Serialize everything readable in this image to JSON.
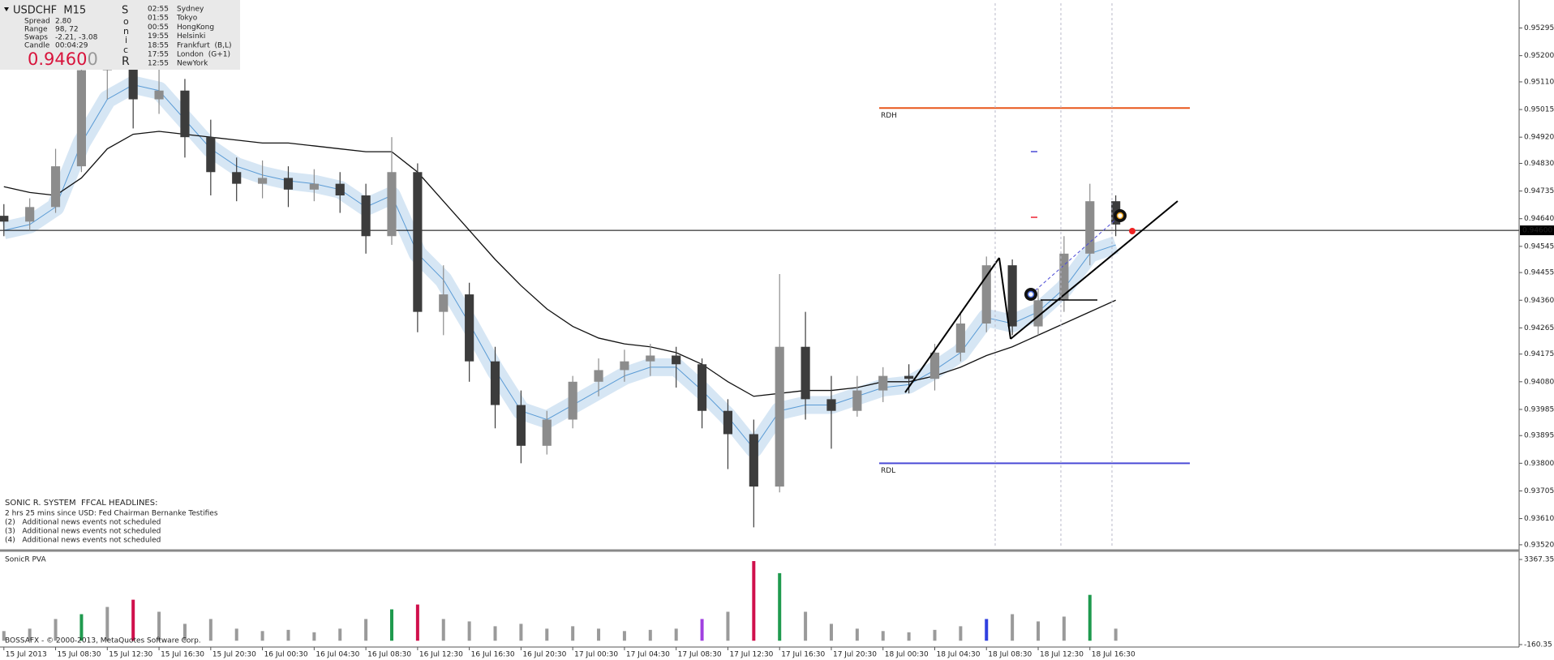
{
  "header": {
    "symbol": "USDCHF  M15",
    "stats": [
      {
        "label": "Spread",
        "value": "2.80"
      },
      {
        "label": "Range",
        "value": "98, 72"
      },
      {
        "label": "Swaps",
        "value": "-2.21, -3.08"
      },
      {
        "label": "Candle",
        "value": "00:04:29"
      }
    ],
    "price_main": "0.9460",
    "price_last": "0",
    "sonic": [
      "S",
      "o",
      "n",
      "i",
      "c",
      "R"
    ]
  },
  "clocks": [
    {
      "time": "02:55",
      "city": "Sydney"
    },
    {
      "time": "01:55",
      "city": "Tokyo"
    },
    {
      "time": "00:55",
      "city": "HongKong"
    },
    {
      "time": "19:55",
      "city": "Helsinki"
    },
    {
      "time": "18:55",
      "city": "Frankfurt  (B,L)"
    },
    {
      "time": "17:55",
      "city": "London  (G+1)"
    },
    {
      "time": "12:55",
      "city": "NewYork"
    }
  ],
  "headlines": {
    "title": "SONIC R. SYSTEM  FFCAL HEADLINES:",
    "items": [
      "2 hrs 25 mins since USD: Fed Chairman Bernanke Testifies",
      "(2)   Additional news events not scheduled",
      "(3)   Additional news events not scheduled",
      "(4)   Additional news events not scheduled"
    ]
  },
  "footer": "BOSSAFX - © 2000-2013, MetaQuotes Software Corp.",
  "chart_data": [
    {
      "type": "candlestick",
      "candles": [
        [
          0.9465,
          0.9469,
          0.9458,
          0.9463
        ],
        [
          0.9463,
          0.9471,
          0.946,
          0.9468
        ],
        [
          0.9468,
          0.9488,
          0.9466,
          0.9482
        ],
        [
          0.9482,
          0.9528,
          0.948,
          0.9515
        ],
        [
          0.9515,
          0.953,
          0.9505,
          0.952
        ],
        [
          0.952,
          0.9526,
          0.9495,
          0.9505
        ],
        [
          0.9505,
          0.953,
          0.95,
          0.9508
        ],
        [
          0.9508,
          0.9512,
          0.9485,
          0.9492
        ],
        [
          0.9492,
          0.9498,
          0.9472,
          0.948
        ],
        [
          0.948,
          0.9485,
          0.947,
          0.9476
        ],
        [
          0.9476,
          0.9484,
          0.9471,
          0.9478
        ],
        [
          0.9478,
          0.9482,
          0.9468,
          0.9474
        ],
        [
          0.9474,
          0.9481,
          0.947,
          0.9476
        ],
        [
          0.9476,
          0.948,
          0.9466,
          0.9472
        ],
        [
          0.9472,
          0.9476,
          0.9452,
          0.9458
        ],
        [
          0.9458,
          0.9492,
          0.9455,
          0.948
        ],
        [
          0.948,
          0.9483,
          0.9425,
          0.9432
        ],
        [
          0.9432,
          0.9448,
          0.9424,
          0.9438
        ],
        [
          0.9438,
          0.9442,
          0.9408,
          0.9415
        ],
        [
          0.9415,
          0.942,
          0.9392,
          0.94
        ],
        [
          0.94,
          0.9405,
          0.938,
          0.9386
        ],
        [
          0.9386,
          0.9398,
          0.9383,
          0.9395
        ],
        [
          0.9395,
          0.941,
          0.9392,
          0.9408
        ],
        [
          0.9408,
          0.9416,
          0.9403,
          0.9412
        ],
        [
          0.9412,
          0.9419,
          0.9408,
          0.9415
        ],
        [
          0.9415,
          0.9421,
          0.941,
          0.9417
        ],
        [
          0.9417,
          0.942,
          0.9406,
          0.9414
        ],
        [
          0.9414,
          0.9416,
          0.9392,
          0.9398
        ],
        [
          0.9398,
          0.9402,
          0.9378,
          0.939
        ],
        [
          0.939,
          0.9395,
          0.9358,
          0.9372
        ],
        [
          0.9372,
          0.9445,
          0.937,
          0.942
        ],
        [
          0.942,
          0.9432,
          0.9395,
          0.9402
        ],
        [
          0.9402,
          0.941,
          0.9385,
          0.9398
        ],
        [
          0.9398,
          0.941,
          0.9396,
          0.9405
        ],
        [
          0.9405,
          0.9413,
          0.9401,
          0.941
        ],
        [
          0.941,
          0.9414,
          0.9404,
          0.9409
        ],
        [
          0.9409,
          0.9421,
          0.9405,
          0.9418
        ],
        [
          0.9418,
          0.9432,
          0.9415,
          0.9428
        ],
        [
          0.9428,
          0.9451,
          0.9425,
          0.9448
        ],
        [
          0.9448,
          0.945,
          0.9424,
          0.9427
        ],
        [
          0.9427,
          0.944,
          0.9424,
          0.9436
        ],
        [
          0.9436,
          0.9458,
          0.9432,
          0.9452
        ],
        [
          0.9452,
          0.9476,
          0.9448,
          0.947
        ],
        [
          0.947,
          0.9472,
          0.9458,
          0.9462
        ]
      ],
      "up_color": "#8c8c8c",
      "down_color": "#3c3c3c",
      "series": [
        {
          "color": "#5a9bd5",
          "values": [
            0.946,
            0.9462,
            0.9468,
            0.949,
            0.9505,
            0.951,
            0.9508,
            0.9498,
            0.9488,
            0.9482,
            0.9479,
            0.9477,
            0.9476,
            0.9474,
            0.9468,
            0.9472,
            0.9452,
            0.9443,
            0.9428,
            0.9412,
            0.9398,
            0.9395,
            0.94,
            0.9405,
            0.941,
            0.9413,
            0.9413,
            0.9405,
            0.9396,
            0.9385,
            0.9398,
            0.94,
            0.94,
            0.9403,
            0.9406,
            0.9407,
            0.9412,
            0.9418,
            0.943,
            0.9428,
            0.9432,
            0.944,
            0.9452,
            0.9455
          ]
        },
        {
          "color": "#111111",
          "values": [
            0.9475,
            0.9473,
            0.9472,
            0.9478,
            0.9488,
            0.9493,
            0.9494,
            0.9493,
            0.9492,
            0.9491,
            0.949,
            0.949,
            0.9489,
            0.9488,
            0.9487,
            0.9487,
            0.948,
            0.947,
            0.946,
            0.945,
            0.9441,
            0.9433,
            0.9427,
            0.9423,
            0.9421,
            0.942,
            0.9418,
            0.9414,
            0.9408,
            0.9403,
            0.9404,
            0.9405,
            0.9405,
            0.9406,
            0.9408,
            0.9408,
            0.941,
            0.9413,
            0.9417,
            0.942,
            0.9424,
            0.9428,
            0.9432,
            0.9436
          ]
        }
      ],
      "levels": [
        {
          "label": "RDH",
          "value": 0.9502,
          "color": "#e8561a"
        },
        {
          "label": "RDL",
          "value": 0.938,
          "color": "#4a4ad6"
        }
      ],
      "current_price": {
        "value": 0.946,
        "label": "0.94600"
      },
      "xlim": [
        -0.15,
        58.6
      ],
      "ylim": [
        0.93503,
        0.9538
      ],
      "yticks": [
        {
          "value": 0.95295,
          "label": "0.95295"
        },
        {
          "value": 0.952,
          "label": "0.95200"
        },
        {
          "value": 0.9511,
          "label": "0.95110"
        },
        {
          "value": 0.95015,
          "label": "0.95015"
        },
        {
          "value": 0.9492,
          "label": "0.94920"
        },
        {
          "value": 0.9483,
          "label": "0.94830"
        },
        {
          "value": 0.94735,
          "label": "0.94735"
        },
        {
          "value": 0.9464,
          "label": "0.94640"
        },
        {
          "value": 0.94545,
          "label": "0.94545"
        },
        {
          "value": 0.94455,
          "label": "0.94455"
        },
        {
          "value": 0.9436,
          "label": "0.94360"
        },
        {
          "value": 0.94265,
          "label": "0.94265"
        },
        {
          "value": 0.94175,
          "label": "0.94175"
        },
        {
          "value": 0.9408,
          "label": "0.94080"
        },
        {
          "value": 0.93985,
          "label": "0.93985"
        },
        {
          "value": 0.93895,
          "label": "0.93895"
        },
        {
          "value": 0.938,
          "label": "0.93800"
        },
        {
          "value": 0.93705,
          "label": "0.93705"
        },
        {
          "value": 0.9361,
          "label": "0.93610"
        },
        {
          "value": 0.9352,
          "label": "0.93520"
        }
      ],
      "xticks": [
        {
          "value": 0,
          "label": "15 Jul 2013"
        },
        {
          "value": 2,
          "label": "15 Jul 08:30"
        },
        {
          "value": 4,
          "label": "15 Jul 12:30"
        },
        {
          "value": 6,
          "label": "15 Jul 16:30"
        },
        {
          "value": 8,
          "label": "15 Jul 20:30"
        },
        {
          "value": 10,
          "label": "16 Jul 00:30"
        },
        {
          "value": 12,
          "label": "16 Jul 04:30"
        },
        {
          "value": 14,
          "label": "16 Jul 08:30"
        },
        {
          "value": 16,
          "label": "16 Jul 12:30"
        },
        {
          "value": 18,
          "label": "16 Jul 16:30"
        },
        {
          "value": 20,
          "label": "16 Jul 20:30"
        },
        {
          "value": 22,
          "label": "17 Jul 00:30"
        },
        {
          "value": 24,
          "label": "17 Jul 04:30"
        },
        {
          "value": 26,
          "label": "17 Jul 08:30"
        },
        {
          "value": 28,
          "label": "17 Jul 12:30"
        },
        {
          "value": 30,
          "label": "17 Jul 16:30"
        },
        {
          "value": 32,
          "label": "17 Jul 20:30"
        },
        {
          "value": 34,
          "label": "18 Jul 00:30"
        },
        {
          "value": 36,
          "label": "18 Jul 04:30"
        },
        {
          "value": 38,
          "label": "18 Jul 08:30"
        },
        {
          "value": 40,
          "label": "18 Jul 12:30"
        },
        {
          "value": 42,
          "label": "18 Jul 16:30"
        }
      ]
    },
    {
      "type": "bar",
      "title": "SonicR PVA",
      "values": [
        400,
        500,
        900,
        1100,
        1400,
        1700,
        1200,
        700,
        900,
        500,
        400,
        450,
        350,
        500,
        900,
        1300,
        1500,
        900,
        800,
        600,
        700,
        500,
        600,
        500,
        400,
        450,
        500,
        900,
        1200,
        3300,
        2800,
        1200,
        700,
        500,
        400,
        350,
        450,
        600,
        900,
        1100,
        800,
        1000,
        1900,
        500
      ],
      "colors": [
        "#9a9a9a",
        "#9a9a9a",
        "#9a9a9a",
        "#1f9a4e",
        "#9a9a9a",
        "#d0104c",
        "#9a9a9a",
        "#9a9a9a",
        "#9a9a9a",
        "#9a9a9a",
        "#9a9a9a",
        "#9a9a9a",
        "#9a9a9a",
        "#9a9a9a",
        "#9a9a9a",
        "#1f9a4e",
        "#d0104c",
        "#9a9a9a",
        "#9a9a9a",
        "#9a9a9a",
        "#9a9a9a",
        "#9a9a9a",
        "#9a9a9a",
        "#9a9a9a",
        "#9a9a9a",
        "#9a9a9a",
        "#9a9a9a",
        "#a040e0",
        "#9a9a9a",
        "#d0104c",
        "#1f9a4e",
        "#9a9a9a",
        "#9a9a9a",
        "#9a9a9a",
        "#9a9a9a",
        "#9a9a9a",
        "#9a9a9a",
        "#9a9a9a",
        "#3040e0",
        "#9a9a9a",
        "#9a9a9a",
        "#9a9a9a",
        "#1f9a4e",
        "#9a9a9a"
      ],
      "xlim": [
        -0.15,
        58.6
      ],
      "ylim": [
        -160.35,
        3367.35
      ],
      "yticks": [
        3367.35,
        -160.35
      ]
    }
  ]
}
